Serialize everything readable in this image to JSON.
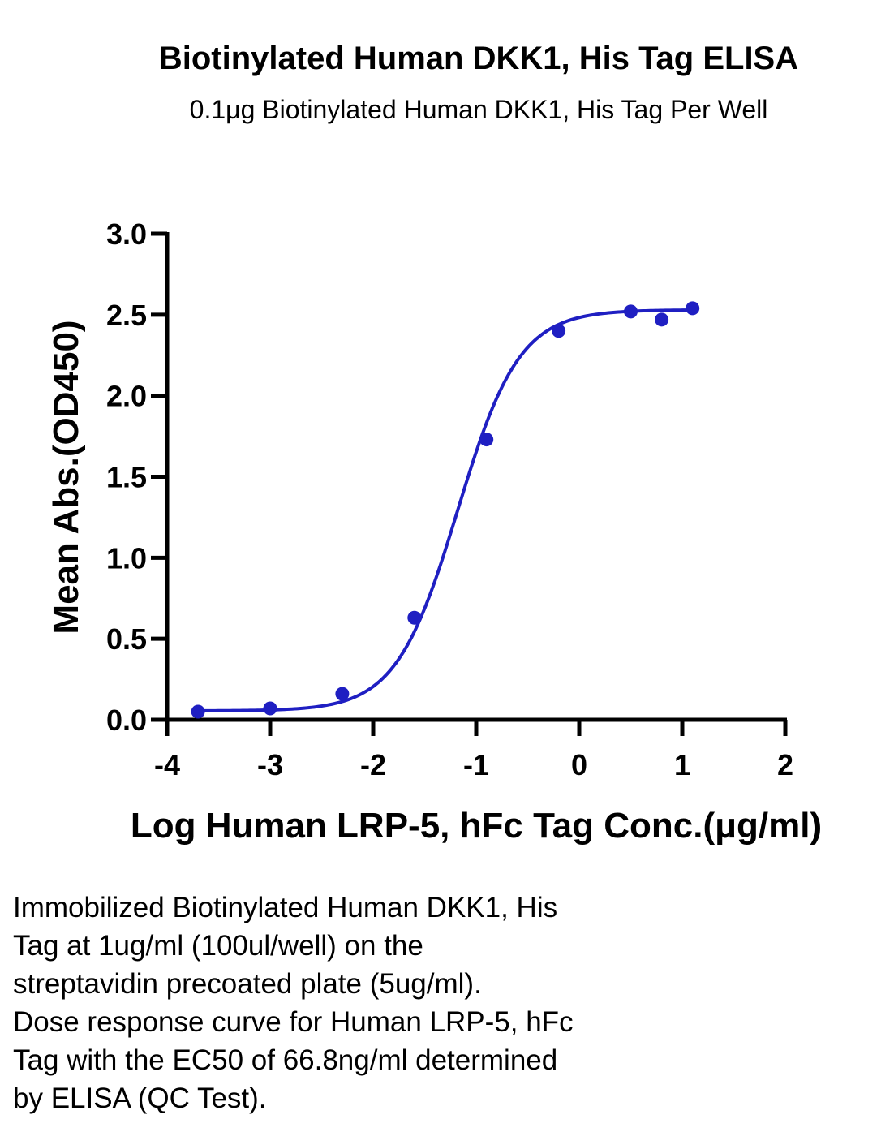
{
  "title": "Biotinylated Human DKK1, His Tag ELISA",
  "subtitle": "0.1μg Biotinylated Human DKK1, His Tag Per Well",
  "caption_lines": [
    "Immobilized Biotinylated Human DKK1, His",
    "Tag at 1ug/ml (100ul/well) on the",
    "streptavidin precoated plate (5ug/ml).",
    "Dose response curve for Human LRP-5, hFc",
    "Tag with the EC50 of 66.8ng/ml determined",
    "by ELISA (QC Test)."
  ],
  "chart_data": {
    "type": "scatter",
    "title": "Biotinylated Human DKK1, His Tag ELISA",
    "subtitle": "0.1μg Biotinylated Human DKK1, His Tag Per Well",
    "xlabel": "Log Human LRP-5, hFc Tag Conc.(μg/ml)",
    "ylabel": "Mean Abs.(OD450)",
    "xlim": [
      -4,
      2
    ],
    "ylim": [
      0,
      3
    ],
    "x_ticks": [
      -4,
      -3,
      -2,
      -1,
      0,
      1,
      2
    ],
    "x_tick_labels": [
      "-4",
      "-3",
      "-2",
      "-1",
      "0",
      "1",
      "2"
    ],
    "y_ticks": [
      0,
      0.5,
      1,
      1.5,
      2,
      2.5,
      3
    ],
    "y_tick_labels": [
      "0.0",
      "0.5",
      "1.0",
      "1.5",
      "2.0",
      "2.5",
      "3.0"
    ],
    "grid": false,
    "color": "#1f1fc2",
    "series": [
      {
        "x": [
          -3.7,
          -3.0,
          -2.3,
          -1.6,
          -0.9,
          -0.2,
          0.5,
          0.8,
          1.1
        ],
        "y": [
          0.05,
          0.07,
          0.16,
          0.63,
          1.73,
          2.4,
          2.52,
          2.47,
          2.54
        ]
      }
    ],
    "fit_curve": {
      "model": "4PL",
      "bottom": 0.055,
      "top": 2.53,
      "log_ec50": -1.18,
      "hill_slope": 1.45
    }
  }
}
